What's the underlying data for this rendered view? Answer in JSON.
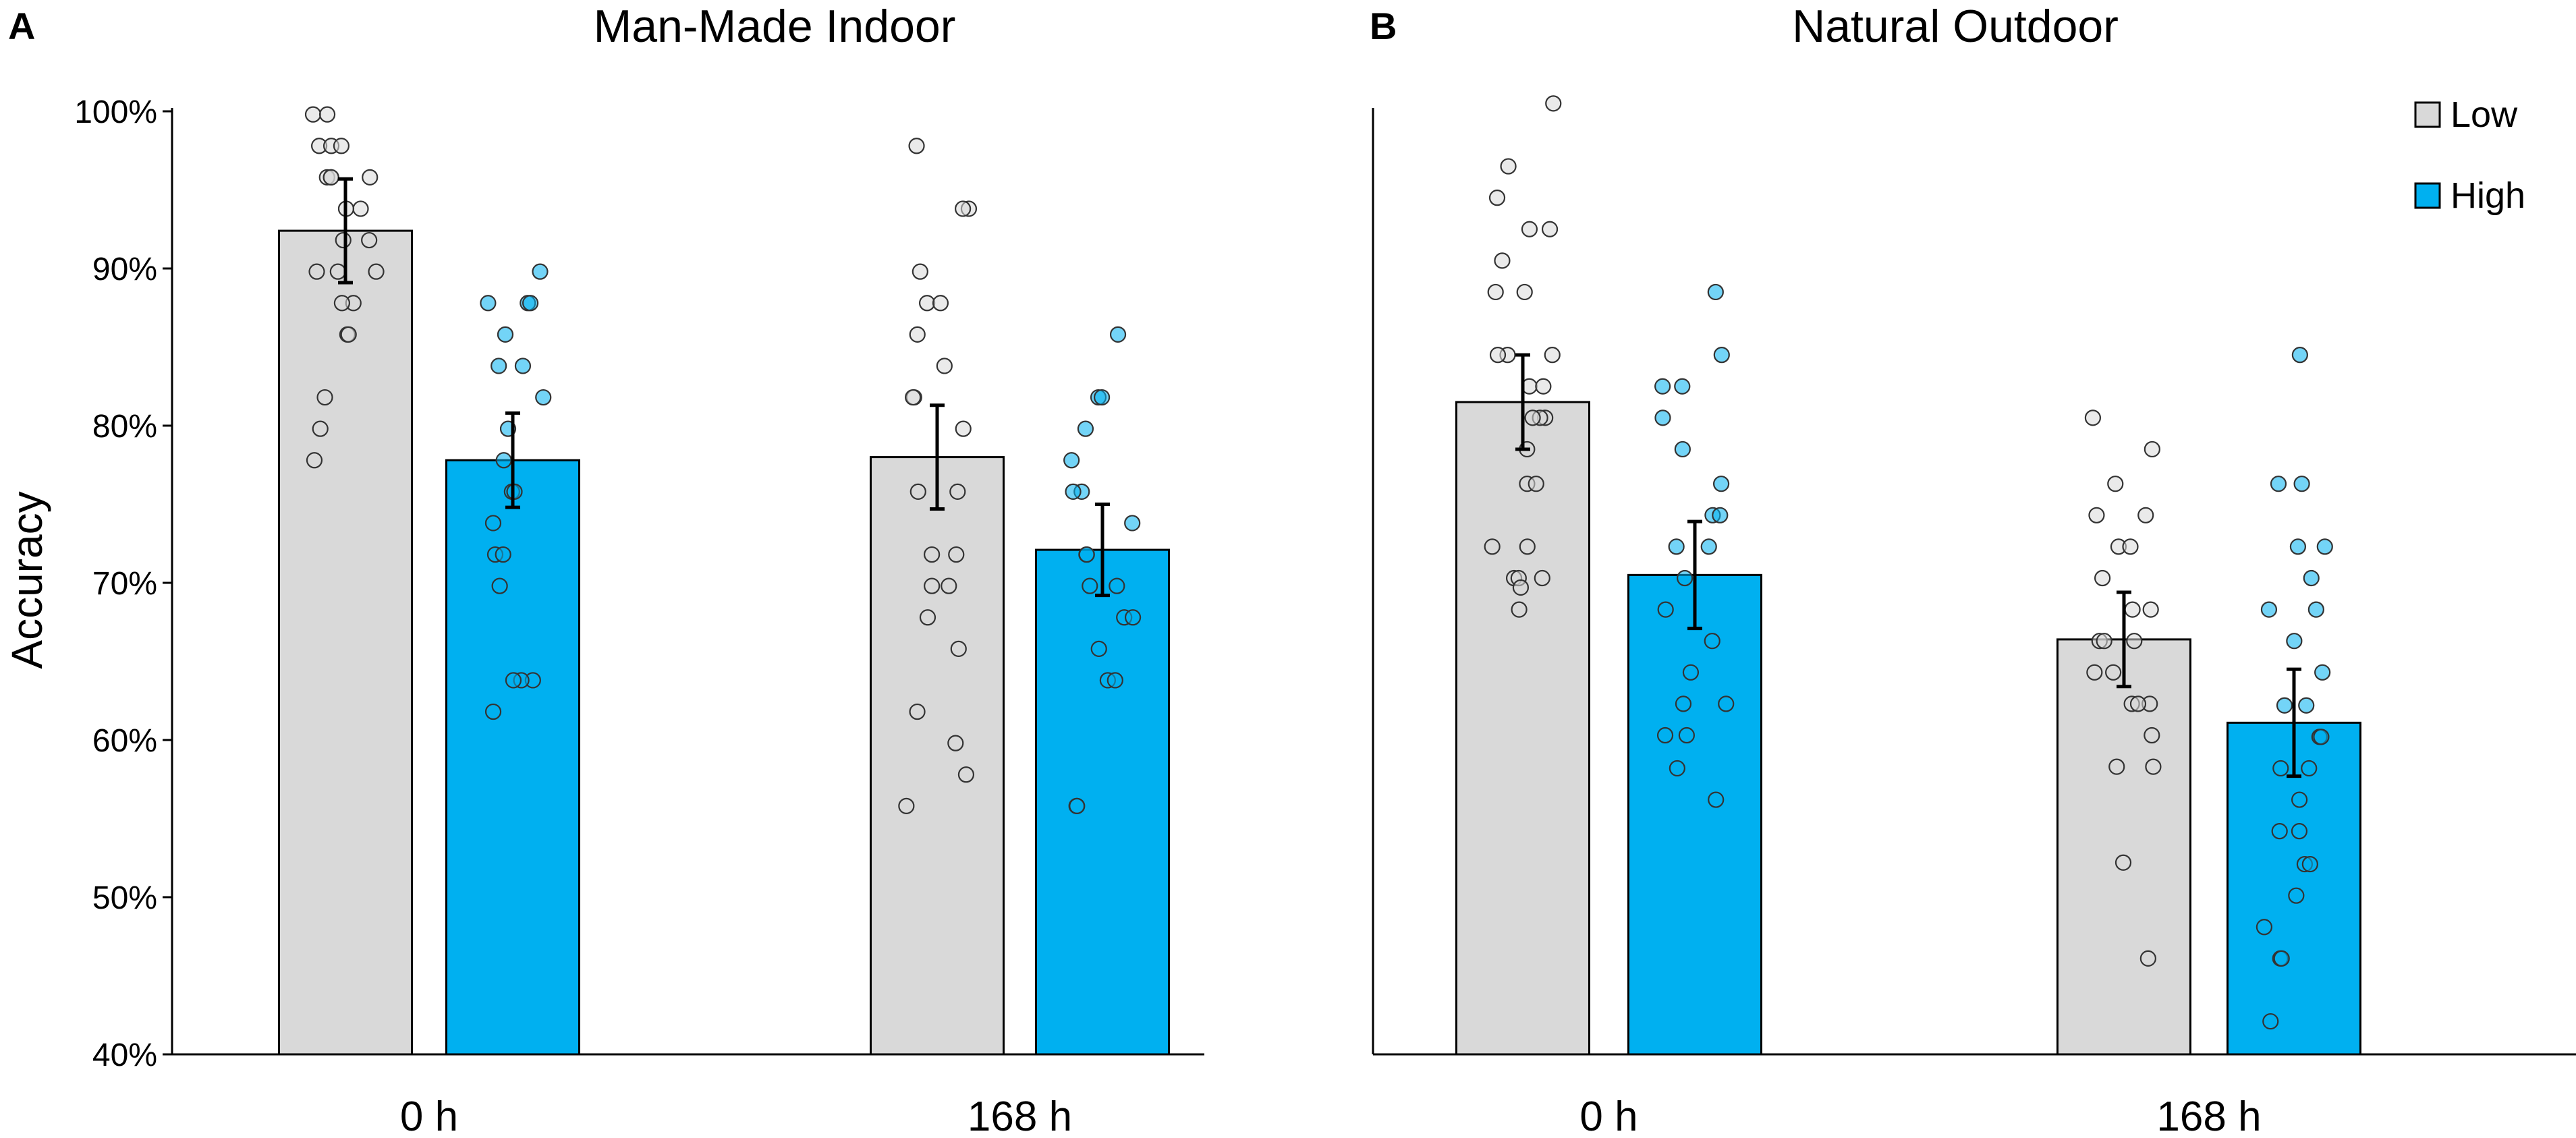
{
  "figure": {
    "y_axis_label": "Accuracy",
    "legend": [
      {
        "name": "Low",
        "color": "#d9d9d9"
      },
      {
        "name": "High",
        "color": "#00b0f0"
      }
    ]
  },
  "chart_data": [
    {
      "type": "bar",
      "panel_letter": "A",
      "title": "Man-Made Indoor",
      "ylabel": "Accuracy",
      "ylim": [
        40,
        100
      ],
      "yticks": [
        40,
        50,
        60,
        70,
        80,
        90,
        100
      ],
      "ytick_labels": [
        "40%",
        "50%",
        "60%",
        "70%",
        "80%",
        "90%",
        "100%"
      ],
      "categories": [
        "0 h",
        "168 h"
      ],
      "series": [
        {
          "name": "Low",
          "color": "#d9d9d9",
          "values": [
            92.4,
            78.0
          ],
          "errors": [
            3.3,
            3.3
          ],
          "points": [
            [
              99.8,
              99.8,
              97.8,
              97.8,
              97.8,
              95.8,
              95.8,
              95.8,
              95.8,
              93.8,
              93.8,
              91.8,
              91.8,
              89.8,
              89.8,
              89.8,
              87.8,
              87.8,
              85.8,
              85.8,
              81.8,
              79.8,
              77.8
            ],
            [
              97.8,
              93.8,
              93.8,
              89.8,
              87.8,
              87.8,
              85.8,
              83.8,
              81.8,
              81.8,
              79.8,
              75.8,
              75.8,
              71.8,
              71.8,
              69.8,
              69.8,
              67.8,
              65.8,
              61.8,
              59.8,
              57.8,
              55.8
            ]
          ]
        },
        {
          "name": "High",
          "color": "#00b0f0",
          "values": [
            77.8,
            72.1
          ],
          "errors": [
            3.0,
            2.9
          ],
          "points": [
            [
              89.8,
              87.8,
              87.8,
              87.8,
              85.8,
              83.8,
              83.8,
              81.8,
              79.8,
              77.8,
              75.8,
              75.8,
              73.8,
              71.8,
              71.8,
              69.8,
              63.8,
              63.8,
              63.8,
              61.8
            ],
            [
              85.8,
              81.8,
              81.8,
              79.8,
              77.8,
              75.8,
              75.8,
              73.8,
              71.8,
              71.8,
              69.8,
              69.8,
              67.8,
              67.8,
              65.8,
              63.8,
              63.8,
              55.8,
              55.8
            ]
          ]
        }
      ]
    },
    {
      "type": "bar",
      "panel_letter": "B",
      "title": "Natural Outdoor",
      "ylabel": "Accuracy",
      "ylim": [
        40,
        100
      ],
      "yticks": [
        40,
        50,
        60,
        70,
        80,
        90,
        100
      ],
      "categories": [
        "0 h",
        "168 h"
      ],
      "series": [
        {
          "name": "Low",
          "color": "#d9d9d9",
          "values": [
            81.5,
            66.4
          ],
          "errors": [
            3.0,
            3.0
          ],
          "points": [
            [
              100.5,
              96.5,
              94.5,
              92.5,
              92.5,
              90.5,
              88.5,
              88.5,
              84.5,
              84.5,
              84.5,
              82.5,
              82.5,
              80.5,
              80.5,
              80.5,
              78.5,
              76.3,
              76.3,
              72.3,
              72.3,
              70.3,
              70.3,
              70.3,
              69.7,
              68.3
            ],
            [
              80.5,
              78.5,
              76.3,
              74.3,
              74.3,
              72.3,
              72.3,
              70.3,
              68.3,
              68.3,
              66.3,
              66.3,
              66.3,
              64.3,
              64.3,
              62.3,
              62.3,
              62.3,
              60.3,
              58.3,
              58.3,
              52.2,
              46.1
            ]
          ]
        },
        {
          "name": "High",
          "color": "#00b0f0",
          "values": [
            70.5,
            61.1
          ],
          "errors": [
            3.4,
            3.4
          ],
          "points": [
            [
              88.5,
              84.5,
              82.5,
              82.5,
              80.5,
              78.5,
              76.3,
              74.3,
              74.3,
              72.3,
              72.3,
              70.3,
              68.3,
              66.3,
              64.3,
              62.3,
              62.3,
              60.3,
              60.3,
              58.2,
              56.2
            ],
            [
              84.5,
              76.3,
              76.3,
              72.3,
              72.3,
              70.3,
              68.3,
              68.3,
              66.3,
              64.3,
              62.2,
              62.2,
              60.2,
              60.2,
              58.2,
              58.2,
              56.2,
              54.2,
              54.2,
              52.1,
              52.1,
              50.1,
              48.1,
              46.1,
              46.1,
              42.1
            ]
          ]
        }
      ]
    }
  ]
}
